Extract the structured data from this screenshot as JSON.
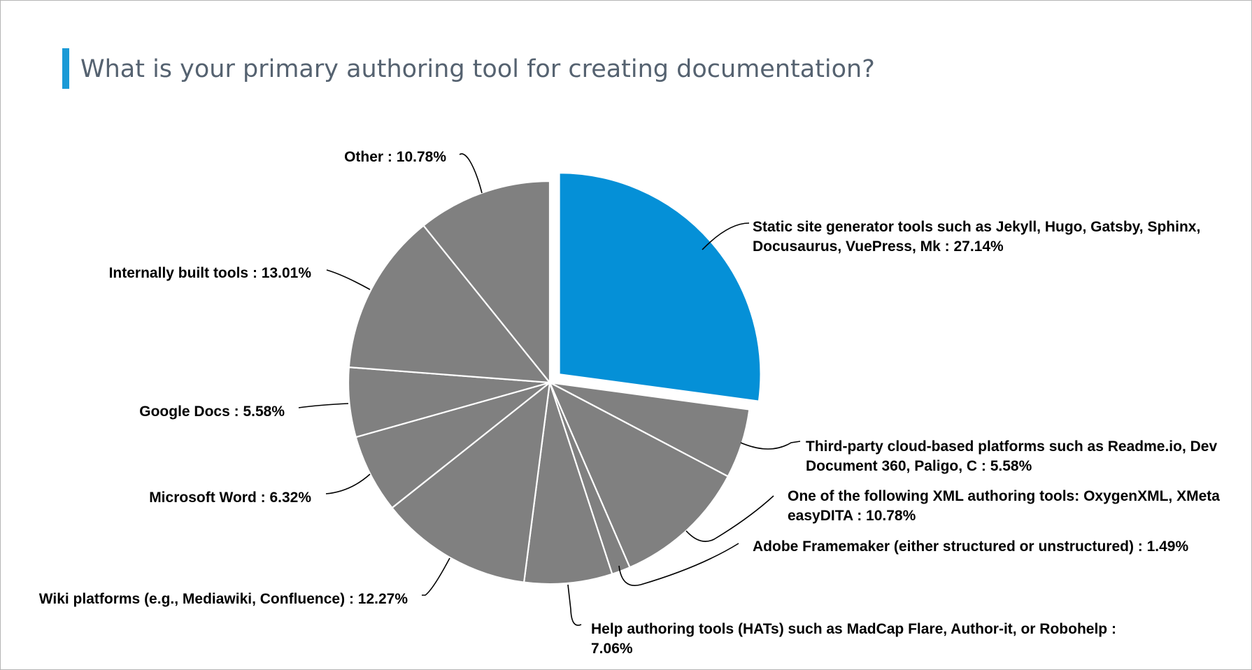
{
  "chart_data": {
    "type": "pie",
    "title": "What is your primary authoring tool for creating documentation?",
    "colors": {
      "highlight": "#0590d7",
      "default": "#808080",
      "border": "#ffffff",
      "title_accent": "#1a9ad6",
      "title_text": "#556270"
    },
    "slices": [
      {
        "label": "Static site generator tools such as Jekyll, Hugo, Gatsby, Sphinx, Docusaurus, VuePress, Mk",
        "value": 27.14,
        "display": "27.14%",
        "lines": [
          "Static site generator tools such as Jekyll, Hugo, Gatsby, Sphinx,",
          "Docusaurus, VuePress, Mk : 27.14%"
        ],
        "highlight": true
      },
      {
        "label": "Third-party cloud-based platforms such as Readme.io, Dev Document 360, Paligo, C",
        "value": 5.58,
        "display": "5.58%",
        "lines": [
          "Third-party cloud-based platforms such as Readme.io, Dev",
          "Document 360, Paligo, C : 5.58%"
        ],
        "highlight": false
      },
      {
        "label": "One of the following XML authoring tools: OxygenXML, XMeta easyDITA",
        "value": 10.78,
        "display": "10.78%",
        "lines": [
          "One of the following XML authoring tools: OxygenXML, XMeta",
          "easyDITA : 10.78%"
        ],
        "highlight": false
      },
      {
        "label": "Adobe Framemaker (either structured or unstructured)",
        "value": 1.49,
        "display": "1.49%",
        "lines": [
          "Adobe Framemaker (either structured or unstructured) : 1.49%"
        ],
        "highlight": false
      },
      {
        "label": "Help authoring tools (HATs) such as MadCap Flare, Author-it, or Robohelp",
        "value": 7.06,
        "display": "7.06%",
        "lines": [
          "Help authoring tools (HATs) such as MadCap Flare, Author-it, or Robohelp :",
          "7.06%"
        ],
        "highlight": false
      },
      {
        "label": "Wiki platforms (e.g., Mediawiki, Confluence)",
        "value": 12.27,
        "display": "12.27%",
        "lines": [
          "Wiki platforms (e.g., Mediawiki, Confluence) : 12.27%"
        ],
        "highlight": false
      },
      {
        "label": "Microsoft Word",
        "value": 6.32,
        "display": "6.32%",
        "lines": [
          "Microsoft Word : 6.32%"
        ],
        "highlight": false
      },
      {
        "label": "Google Docs",
        "value": 5.58,
        "display": "5.58%",
        "lines": [
          "Google Docs : 5.58%"
        ],
        "highlight": false
      },
      {
        "label": "Internally built tools",
        "value": 13.01,
        "display": "13.01%",
        "lines": [
          "Internally built tools : 13.01%"
        ],
        "highlight": false
      },
      {
        "label": "Other",
        "value": 10.78,
        "display": "10.78%",
        "lines": [
          "Other : 10.78%"
        ],
        "highlight": false
      }
    ]
  }
}
